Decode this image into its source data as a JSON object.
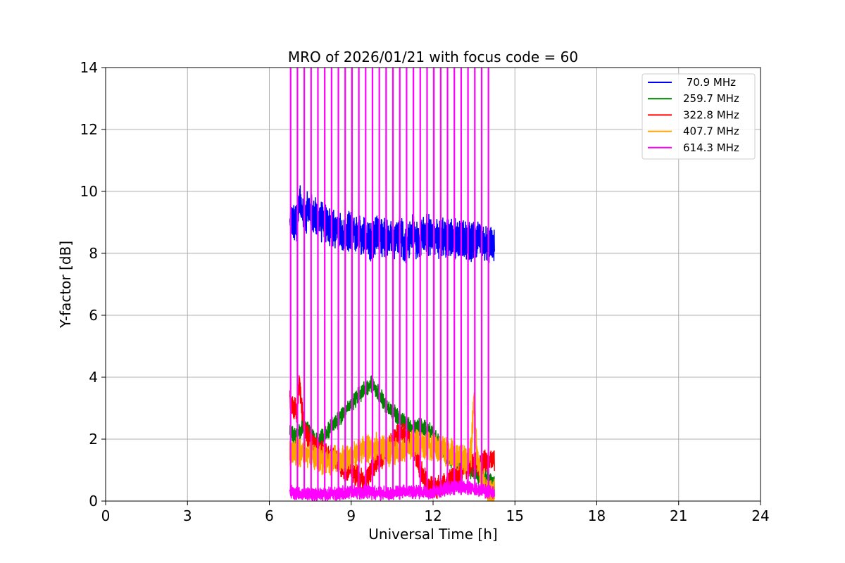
{
  "chart_data": {
    "type": "line",
    "title": "MRO of 2026/01/21 with focus code = 60",
    "xlabel": "Universal Time [h]",
    "ylabel": "Y-factor [dB]",
    "xlim": [
      0,
      24
    ],
    "ylim": [
      0,
      14
    ],
    "xticks": [
      0,
      3,
      6,
      9,
      12,
      15,
      18,
      21,
      24
    ],
    "yticks": [
      0,
      2,
      4,
      6,
      8,
      10,
      12,
      14
    ],
    "grid": true,
    "legend_position": "top-right",
    "x_start": 6.75,
    "x_end": 14.25,
    "series": [
      {
        "name": " 70.9 MHz",
        "color": "#0000ff",
        "band": 0.35,
        "x": [
          6.75,
          7.0,
          7.1,
          7.25,
          7.5,
          7.75,
          8.0,
          8.25,
          8.5,
          8.75,
          9.0,
          9.25,
          9.5,
          9.75,
          10.0,
          10.25,
          10.5,
          10.75,
          11.0,
          11.25,
          11.5,
          11.75,
          12.0,
          12.25,
          12.5,
          12.75,
          13.0,
          13.25,
          13.5,
          13.75,
          14.0,
          14.25
        ],
        "y": [
          8.9,
          9.0,
          9.7,
          9.2,
          9.4,
          9.1,
          9.0,
          8.8,
          8.7,
          8.6,
          8.8,
          8.6,
          8.5,
          8.3,
          8.6,
          8.5,
          8.4,
          8.7,
          8.3,
          8.6,
          8.4,
          8.6,
          8.6,
          8.5,
          8.5,
          8.4,
          8.6,
          8.3,
          8.5,
          8.4,
          8.3,
          8.2
        ]
      },
      {
        "name": "259.7 MHz",
        "color": "#008000",
        "band": 0.15,
        "x": [
          6.75,
          7.0,
          7.25,
          7.5,
          7.75,
          8.0,
          8.25,
          8.5,
          8.75,
          9.0,
          9.25,
          9.5,
          9.75,
          10.0,
          10.25,
          10.5,
          10.75,
          11.0,
          11.25,
          11.5,
          11.75,
          12.0,
          12.25,
          12.5,
          12.75,
          13.0,
          13.25,
          13.5,
          13.75,
          14.0,
          14.25
        ],
        "y": [
          2.2,
          2.1,
          2.4,
          2.2,
          1.9,
          2.1,
          2.4,
          2.6,
          2.9,
          3.1,
          3.4,
          3.6,
          3.8,
          3.5,
          3.1,
          2.9,
          2.7,
          2.5,
          2.3,
          2.4,
          2.3,
          2.2,
          1.8,
          1.4,
          1.3,
          1.2,
          1.1,
          0.9,
          0.8,
          0.7,
          0.5
        ]
      },
      {
        "name": "322.8 MHz",
        "color": "#ff0000",
        "band": 0.2,
        "x": [
          6.75,
          6.9,
          7.0,
          7.1,
          7.25,
          7.5,
          7.75,
          8.0,
          8.25,
          8.5,
          8.75,
          9.0,
          9.25,
          9.5,
          9.75,
          10.0,
          10.25,
          10.5,
          10.75,
          11.0,
          11.25,
          11.5,
          11.75,
          12.0,
          12.25,
          12.5,
          12.75,
          13.0,
          13.25,
          13.5,
          13.75,
          14.0,
          14.25
        ],
        "y": [
          3.3,
          3.0,
          2.9,
          3.9,
          2.5,
          1.9,
          1.7,
          1.6,
          1.5,
          1.3,
          1.0,
          1.0,
          0.8,
          0.6,
          1.0,
          1.3,
          1.5,
          1.9,
          2.2,
          2.1,
          1.8,
          1.1,
          0.6,
          0.4,
          0.5,
          0.6,
          0.8,
          0.9,
          1.1,
          1.2,
          1.2,
          1.3,
          1.3
        ]
      },
      {
        "name": "407.7 MHz",
        "color": "#ffa500",
        "band": 0.25,
        "x": [
          6.75,
          7.0,
          7.25,
          7.5,
          7.75,
          8.0,
          8.25,
          8.5,
          8.75,
          9.0,
          9.25,
          9.5,
          9.75,
          10.0,
          10.25,
          10.5,
          10.75,
          11.0,
          11.25,
          11.5,
          11.75,
          12.0,
          12.25,
          12.5,
          12.75,
          13.0,
          13.25,
          13.4,
          13.5,
          13.6,
          13.75,
          14.0,
          14.25
        ],
        "y": [
          1.5,
          1.6,
          1.6,
          1.5,
          1.4,
          1.3,
          1.3,
          1.4,
          1.3,
          1.4,
          1.6,
          1.7,
          1.7,
          1.8,
          1.6,
          1.6,
          1.6,
          1.7,
          1.8,
          1.9,
          1.8,
          1.8,
          1.7,
          1.6,
          1.5,
          1.4,
          1.3,
          1.6,
          3.4,
          1.6,
          0.8,
          0.3,
          0.2
        ]
      },
      {
        "name": "614.3 MHz",
        "color": "#ff00ff",
        "band": 0.12,
        "x": [
          6.75,
          7.0,
          7.5,
          8.0,
          8.5,
          9.0,
          9.5,
          10.0,
          10.5,
          11.0,
          11.5,
          12.0,
          12.5,
          12.75,
          13.0,
          13.25,
          13.5,
          13.75,
          14.0,
          14.25
        ],
        "y": [
          0.3,
          0.25,
          0.2,
          0.2,
          0.25,
          0.3,
          0.3,
          0.25,
          0.25,
          0.3,
          0.3,
          0.3,
          0.4,
          0.45,
          0.5,
          0.45,
          0.4,
          0.35,
          0.3,
          0.3
        ]
      }
    ],
    "spikes": {
      "series": "614.3 MHz",
      "color": "#ff00ff",
      "x": [
        6.78,
        7.03,
        7.28,
        7.53,
        7.78,
        8.03,
        8.28,
        8.53,
        8.78,
        9.03,
        9.28,
        9.53,
        9.78,
        10.03,
        10.28,
        10.53,
        10.78,
        11.03,
        11.28,
        11.53,
        11.78,
        12.03,
        12.28,
        12.53,
        12.78,
        13.03,
        13.28,
        13.53,
        13.78,
        14.03
      ]
    }
  }
}
